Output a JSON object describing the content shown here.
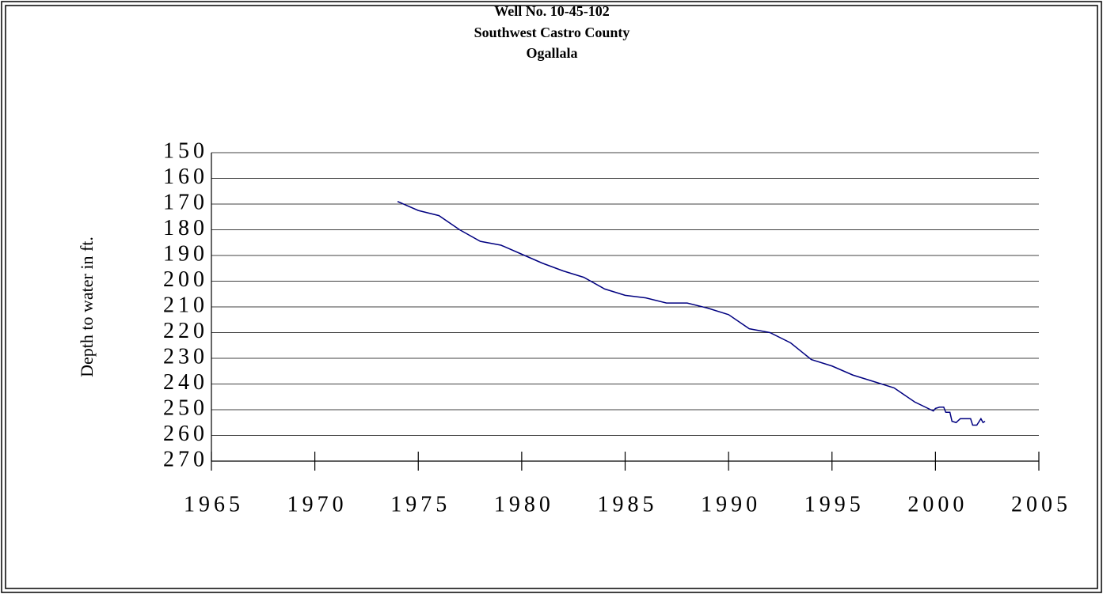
{
  "chart_data": {
    "type": "line",
    "title_lines": [
      "Well No.  10-45-102",
      "Southwest Castro County",
      "Ogallala"
    ],
    "y_label": "Depth to water in ft.",
    "y_inverted": true,
    "grid": true,
    "xlim": [
      1965,
      2005
    ],
    "xticks": [
      1965,
      1970,
      1975,
      1980,
      1985,
      1990,
      1995,
      2000,
      2005
    ],
    "ylim": [
      150,
      270
    ],
    "yticks": [
      150,
      160,
      170,
      180,
      190,
      200,
      210,
      220,
      230,
      240,
      250,
      260,
      270
    ],
    "x": [
      1974.0,
      1975.0,
      1976.0,
      1977.0,
      1978.0,
      1979.0,
      1980.0,
      1981.0,
      1982.0,
      1983.0,
      1984.0,
      1985.0,
      1986.0,
      1987.0,
      1988.0,
      1989.0,
      1990.0,
      1991.0,
      1992.0,
      1993.0,
      1994.0,
      1995.0,
      1996.0,
      1997.0,
      1998.0,
      1999.0,
      1999.9,
      2000.0,
      2000.2,
      2000.4,
      2000.5,
      2000.7,
      2000.8,
      2001.0,
      2001.2,
      2001.5,
      2001.7,
      2001.8,
      2002.0,
      2002.2,
      2002.3,
      2002.4
    ],
    "series": [
      {
        "color": "#000080",
        "values": [
          169,
          172.5,
          174.5,
          180,
          184.5,
          186,
          189.5,
          193,
          196,
          198.5,
          203,
          205.5,
          206.5,
          208.5,
          208.5,
          210.5,
          213,
          218.5,
          220,
          224,
          230.5,
          233,
          236.5,
          239,
          241.5,
          247,
          250.5,
          249.5,
          249,
          249,
          251,
          251,
          254.5,
          255,
          253.5,
          253.5,
          253.5,
          256,
          256,
          253.5,
          255,
          254.5
        ]
      }
    ]
  }
}
